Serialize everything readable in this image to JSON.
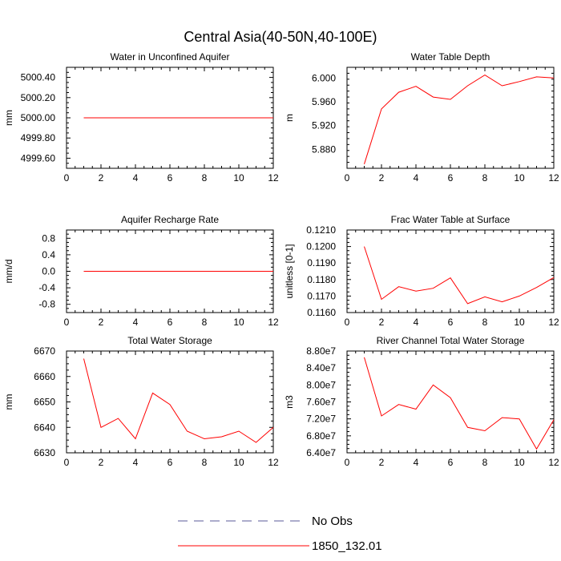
{
  "figure": {
    "title": "Central Asia(40-50N,40-100E)",
    "legend_position": "bottom-center",
    "legend": [
      {
        "label": "No Obs",
        "color": "#5a5a9a",
        "dash": "dashed"
      },
      {
        "label": "1850_132.01",
        "color": "#ff0000",
        "dash": "solid"
      }
    ]
  },
  "chart_data": [
    {
      "type": "line",
      "title": "Water in Unconfined Aquifer",
      "ylabel": "mm",
      "xlim": [
        0,
        12
      ],
      "ylim": [
        4999.5,
        5000.5
      ],
      "xticks": [
        0,
        2,
        4,
        6,
        8,
        10,
        12
      ],
      "yticks": [
        4999.6,
        4999.8,
        5000.0,
        5000.2,
        5000.4
      ],
      "ytick_labels": [
        "4999.60",
        "4999.80",
        "5000.00",
        "5000.20",
        "5000.40"
      ],
      "series": [
        {
          "color": "#ff0000",
          "x": [
            1,
            2,
            3,
            4,
            5,
            6,
            7,
            8,
            9,
            10,
            11,
            12
          ],
          "y": [
            5000,
            5000,
            5000,
            5000,
            5000,
            5000,
            5000,
            5000,
            5000,
            5000,
            5000,
            5000
          ]
        }
      ]
    },
    {
      "type": "line",
      "title": "Water Table Depth",
      "ylabel": "m",
      "xlim": [
        0,
        12
      ],
      "ylim": [
        5.848,
        6.018
      ],
      "xticks": [
        0,
        2,
        4,
        6,
        8,
        10,
        12
      ],
      "yticks": [
        5.88,
        5.92,
        5.96,
        6.0
      ],
      "ytick_labels": [
        "5.880",
        "5.920",
        "5.960",
        "6.000"
      ],
      "series": [
        {
          "color": "#ff0000",
          "x": [
            1,
            2,
            3,
            4,
            5,
            6,
            7,
            8,
            9,
            10,
            11,
            12
          ],
          "y": [
            5.855,
            5.948,
            5.976,
            5.986,
            5.968,
            5.964,
            5.987,
            6.005,
            5.987,
            5.994,
            6.002,
            6.0
          ]
        }
      ]
    },
    {
      "type": "line",
      "title": "Aquifer Recharge Rate",
      "ylabel": "mm/d",
      "xlim": [
        0,
        12
      ],
      "ylim": [
        -1.0,
        1.0
      ],
      "xticks": [
        0,
        2,
        4,
        6,
        8,
        10,
        12
      ],
      "yticks": [
        -0.8,
        -0.4,
        0.0,
        0.4,
        0.8
      ],
      "ytick_labels": [
        "-0.8",
        "-0.4",
        "0.0",
        "0.4",
        "0.8"
      ],
      "series": [
        {
          "color": "#ff0000",
          "x": [
            1,
            2,
            3,
            4,
            5,
            6,
            7,
            8,
            9,
            10,
            11,
            12
          ],
          "y": [
            0,
            0,
            0,
            0,
            0,
            0,
            0,
            0,
            0,
            0,
            0,
            0
          ]
        }
      ]
    },
    {
      "type": "line",
      "title": "Frac Water Table at Surface",
      "ylabel": "unitless [0-1]",
      "xlim": [
        0,
        12
      ],
      "ylim": [
        0.116,
        0.121
      ],
      "xticks": [
        0,
        2,
        4,
        6,
        8,
        10,
        12
      ],
      "yticks": [
        0.116,
        0.117,
        0.118,
        0.119,
        0.12,
        0.121
      ],
      "ytick_labels": [
        "0.1160",
        "0.1170",
        "0.1180",
        "0.1190",
        "0.1200",
        "0.1210"
      ],
      "series": [
        {
          "color": "#ff0000",
          "x": [
            1,
            2,
            3,
            4,
            5,
            6,
            7,
            8,
            9,
            10,
            11,
            12
          ],
          "y": [
            0.12,
            0.1168,
            0.11757,
            0.1173,
            0.11747,
            0.1181,
            0.11654,
            0.11695,
            0.11665,
            0.117,
            0.11752,
            0.11812
          ]
        }
      ]
    },
    {
      "type": "line",
      "title": "Total Water Storage",
      "ylabel": "mm",
      "xlim": [
        0,
        12
      ],
      "ylim": [
        6630,
        6670
      ],
      "xticks": [
        0,
        2,
        4,
        6,
        8,
        10,
        12
      ],
      "yticks": [
        6630,
        6640,
        6650,
        6660,
        6670
      ],
      "ytick_labels": [
        "6630",
        "6640",
        "6650",
        "6660",
        "6670"
      ],
      "series": [
        {
          "color": "#ff0000",
          "x": [
            1,
            2,
            3,
            4,
            5,
            6,
            7,
            8,
            9,
            10,
            11,
            12
          ],
          "y": [
            6667,
            6640,
            6643.5,
            6635.5,
            6653.5,
            6649,
            6638.5,
            6635.5,
            6636.3,
            6638.5,
            6634.1,
            6640
          ]
        }
      ]
    },
    {
      "type": "line",
      "title": "River Channel Total Water Storage",
      "ylabel": "m3",
      "xlim": [
        0,
        12
      ],
      "ylim": [
        64000000,
        88000000
      ],
      "xticks": [
        0,
        2,
        4,
        6,
        8,
        10,
        12
      ],
      "yticks": [
        64000000,
        68000000,
        72000000,
        76000000,
        80000000,
        84000000,
        88000000
      ],
      "ytick_labels": [
        "6.40e7",
        "6.80e7",
        "7.20e7",
        "7.60e7",
        "8.00e7",
        "8.40e7",
        "8.80e7"
      ],
      "series": [
        {
          "color": "#ff0000",
          "x": [
            1,
            2,
            3,
            4,
            5,
            6,
            7,
            8,
            9,
            10,
            11,
            12
          ],
          "y": [
            86500000,
            72700000,
            75400000,
            74300000,
            80000000,
            77000000,
            70000000,
            69200000,
            72300000,
            72000000,
            64900000,
            71800000
          ]
        }
      ]
    }
  ]
}
